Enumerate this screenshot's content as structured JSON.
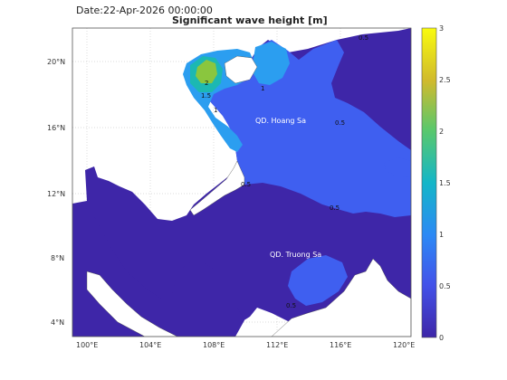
{
  "header": {
    "date_label": "Date:22-Apr-2026 00:00:00",
    "title": "Significant wave height [m]"
  },
  "map": {
    "x_ticks": [
      "100°E",
      "104°E",
      "108°E",
      "112°E",
      "116°E",
      "120°E"
    ],
    "y_ticks": [
      "20°N",
      "16°N",
      "12°N",
      "8°N",
      "4°N"
    ],
    "place_labels": [
      "QD. Hoang Sa",
      "QD. Truong Sa"
    ],
    "contour_labels": [
      "2",
      "1.5",
      "1",
      "0.5"
    ]
  },
  "colorbar": {
    "ticks": [
      "3",
      "2.5",
      "2",
      "1.5",
      "1",
      "0.5",
      "0"
    ],
    "colors": [
      "#3e26a8",
      "#3f5ff0",
      "#2b9ef0",
      "#1cb8b2",
      "#6ecc5a",
      "#d1bb2c",
      "#f9fb0e"
    ]
  },
  "colors": {
    "land": "#ffffff",
    "sea_low": "#3e26a8",
    "sea_mid": "#3f5ff0",
    "sea_high": "#2b9ef0",
    "peak": "#8ac63e"
  }
}
